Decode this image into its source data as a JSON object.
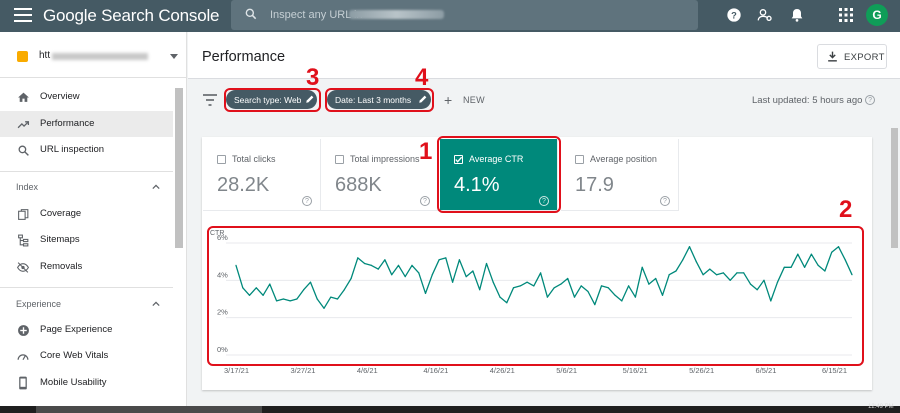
{
  "app": {
    "title": "Google Search Console",
    "search_placeholder": "Inspect any URL in",
    "avatar_letter": "G"
  },
  "sidebar": {
    "property_prefix": "htt",
    "items": [
      {
        "label": "Overview",
        "icon": "home-icon"
      },
      {
        "label": "Performance",
        "icon": "trending-up-icon",
        "active": true
      },
      {
        "label": "URL inspection",
        "icon": "search-icon"
      }
    ],
    "sections": [
      {
        "title": "Index",
        "items": [
          {
            "label": "Coverage",
            "icon": "file-copy-icon"
          },
          {
            "label": "Sitemaps",
            "icon": "sitemap-icon"
          },
          {
            "label": "Removals",
            "icon": "eye-off-icon"
          }
        ]
      },
      {
        "title": "Experience",
        "items": [
          {
            "label": "Page Experience",
            "icon": "plus-circle-icon"
          },
          {
            "label": "Core Web Vitals",
            "icon": "speed-icon"
          },
          {
            "label": "Mobile Usability",
            "icon": "phone-icon"
          }
        ]
      }
    ]
  },
  "header": {
    "title": "Performance",
    "export_label": "EXPORT"
  },
  "filters": {
    "search_type": "Search type: Web",
    "date": "Date: Last 3 months",
    "new_label": "NEW",
    "last_updated": "Last updated: 5 hours ago"
  },
  "metrics": [
    {
      "label": "Total clicks",
      "value": "28.2K",
      "selected": false
    },
    {
      "label": "Total impressions",
      "value": "688K",
      "selected": false
    },
    {
      "label": "Average CTR",
      "value": "4.1%",
      "selected": true
    },
    {
      "label": "Average position",
      "value": "17.9",
      "selected": false
    }
  ],
  "annotations": [
    "1",
    "2",
    "3",
    "4"
  ],
  "taskbar": {
    "clock": "12:49 PM"
  },
  "colors": {
    "topbar": "#455a64",
    "selected_metric": "#00897b",
    "line": "#00897b",
    "annotation": "#e0101b"
  },
  "chart_data": {
    "type": "line",
    "ylabel": "CTR",
    "y_ticks": [
      "6%",
      "4%",
      "2%",
      "0%"
    ],
    "ylim": [
      0,
      6
    ],
    "x_ticks": [
      "3/17/21",
      "3/27/21",
      "4/6/21",
      "4/16/21",
      "4/26/21",
      "5/6/21",
      "5/16/21",
      "5/26/21",
      "6/5/21",
      "6/15/21"
    ],
    "x_start": "3/17/21",
    "x_end": "6/17/21",
    "grid": true,
    "series": [
      {
        "values": [
          4.8,
          3.6,
          3.2,
          3.6,
          3.2,
          3.8,
          2.9,
          3.0,
          2.9,
          3.0,
          3.5,
          3.9,
          3.0,
          2.5,
          3.1,
          3.0,
          3.5,
          4.1,
          5.2,
          4.9,
          4.8,
          4.6,
          5.1,
          4.3,
          4.8,
          4.2,
          4.8,
          4.4,
          3.3,
          4.3,
          5.1,
          5.2,
          3.9,
          5.1,
          4.2,
          4.5,
          3.5,
          4.9,
          3.9,
          3.1,
          2.8,
          3.6,
          3.7,
          3.9,
          3.7,
          4.4,
          3.1,
          3.6,
          3.8,
          4.1,
          3.1,
          3.7,
          3.4,
          2.7,
          3.7,
          3.6,
          3.2,
          2.9,
          3.7,
          3.1,
          4.7,
          3.8,
          4.1,
          3.2,
          4.3,
          4.5,
          5.1,
          5.8,
          5.0,
          4.3,
          4.6,
          4.3,
          4.4,
          4.0,
          4.4,
          4.4,
          3.8,
          3.5,
          4.0,
          2.9,
          3.9,
          4.7,
          4.7,
          5.4,
          4.7,
          5.4,
          4.8,
          4.5,
          5.5,
          5.8,
          5.1,
          4.3
        ]
      }
    ]
  }
}
